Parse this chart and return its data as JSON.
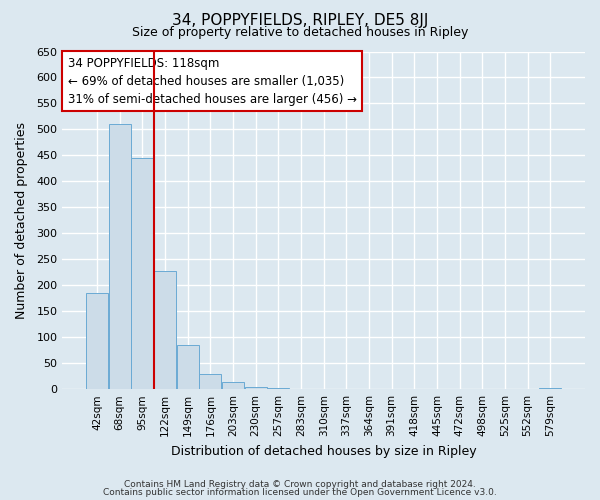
{
  "title": "34, POPPYFIELDS, RIPLEY, DE5 8JJ",
  "subtitle": "Size of property relative to detached houses in Ripley",
  "xlabel": "Distribution of detached houses by size in Ripley",
  "ylabel": "Number of detached properties",
  "footer_line1": "Contains HM Land Registry data © Crown copyright and database right 2024.",
  "footer_line2": "Contains public sector information licensed under the Open Government Licence v3.0.",
  "bar_labels": [
    "42sqm",
    "68sqm",
    "95sqm",
    "122sqm",
    "149sqm",
    "176sqm",
    "203sqm",
    "230sqm",
    "257sqm",
    "283sqm",
    "310sqm",
    "337sqm",
    "364sqm",
    "391sqm",
    "418sqm",
    "445sqm",
    "472sqm",
    "498sqm",
    "525sqm",
    "552sqm",
    "579sqm"
  ],
  "bar_values": [
    185,
    510,
    445,
    228,
    85,
    30,
    13,
    5,
    2,
    1,
    0,
    0,
    1,
    0,
    0,
    1,
    0,
    0,
    0,
    0,
    2
  ],
  "bar_color": "#ccdce8",
  "bar_edge_color": "#6aaad4",
  "ylim": [
    0,
    650
  ],
  "yticks": [
    0,
    50,
    100,
    150,
    200,
    250,
    300,
    350,
    400,
    450,
    500,
    550,
    600,
    650
  ],
  "vline_color": "#cc0000",
  "annotation_title": "34 POPPYFIELDS: 118sqm",
  "annotation_line1": "← 69% of detached houses are smaller (1,035)",
  "annotation_line2": "31% of semi-detached houses are larger (456) →",
  "bg_color": "#dce8f0",
  "plot_bg_color": "#dce8f0",
  "grid_color": "#ffffff"
}
